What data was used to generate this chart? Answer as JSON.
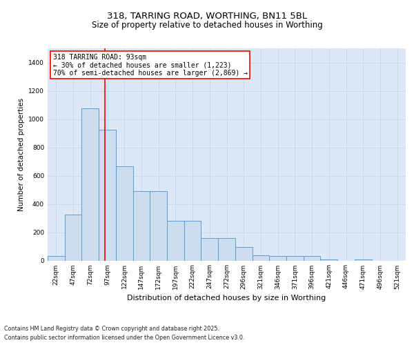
{
  "title1": "318, TARRING ROAD, WORTHING, BN11 5BL",
  "title2": "Size of property relative to detached houses in Worthing",
  "xlabel": "Distribution of detached houses by size in Worthing",
  "ylabel": "Number of detached properties",
  "categories": [
    "22sqm",
    "47sqm",
    "72sqm",
    "97sqm",
    "122sqm",
    "147sqm",
    "172sqm",
    "197sqm",
    "222sqm",
    "247sqm",
    "272sqm",
    "296sqm",
    "321sqm",
    "346sqm",
    "371sqm",
    "396sqm",
    "421sqm",
    "446sqm",
    "471sqm",
    "496sqm",
    "521sqm"
  ],
  "values": [
    30,
    325,
    1075,
    925,
    665,
    490,
    490,
    280,
    280,
    160,
    160,
    95,
    35,
    30,
    30,
    30,
    8,
    0,
    5,
    0,
    0
  ],
  "bar_color": "#ccddf0",
  "bar_edge_color": "#5b9bd5",
  "grid_color": "#c8d8e8",
  "bg_color": "#dce8f5",
  "vline_x": 93,
  "vline_color": "red",
  "annotation_title": "318 TARRING ROAD: 93sqm",
  "annotation_line1": "← 30% of detached houses are smaller (1,223)",
  "annotation_line2": "70% of semi-detached houses are larger (2,869) →",
  "annotation_box_color": "red",
  "footnote1": "Contains HM Land Registry data © Crown copyright and database right 2025.",
  "footnote2": "Contains public sector information licensed under the Open Government Licence v3.0.",
  "ylim": [
    0,
    1500
  ],
  "yticks": [
    0,
    200,
    400,
    600,
    800,
    1000,
    1200,
    1400
  ],
  "bin_width": 25,
  "title1_fontsize": 9.5,
  "title2_fontsize": 8.5,
  "ylabel_fontsize": 7.5,
  "xlabel_fontsize": 8,
  "tick_fontsize": 6.5,
  "annotation_fontsize": 7,
  "footnote_fontsize": 5.8
}
